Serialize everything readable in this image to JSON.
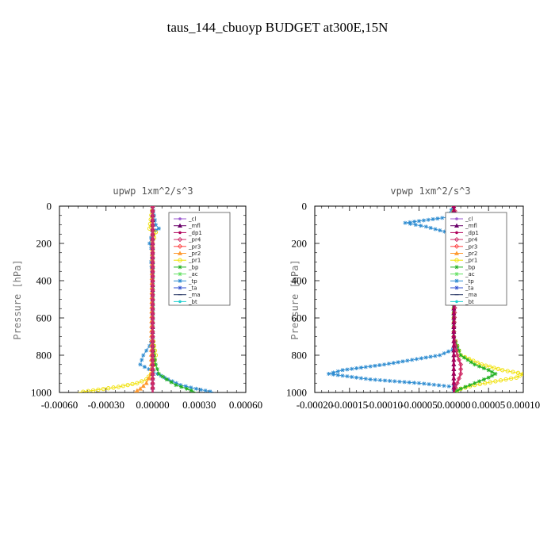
{
  "figure": {
    "title": "taus_144_cbuoyp  BUDGET at300E,15N"
  },
  "legend_labels": [
    "_cl",
    "_mfl",
    "_dp1",
    "_pr4",
    "_pr3",
    "_pr2",
    "_pr1",
    "_bp",
    "_ac",
    "_tp",
    "_ta",
    "_ma",
    "_bt"
  ],
  "colors": {
    "_cl": "#9b59d0",
    "_mfl": "#6a006a",
    "_dp1": "#b0005a",
    "_pr4": "#d0306a",
    "_pr3": "#ff4040",
    "_pr2": "#ff9a30",
    "_pr1": "#f0e000",
    "_bp": "#20b020",
    "_ac": "#60e060",
    "_tp": "#2a8ad0",
    "_ta": "#3050d0",
    "_ma": "#203060",
    "_bt": "#20d0d0"
  },
  "chart_data": [
    {
      "type": "line",
      "title": "upwp   1xm^2/s^3",
      "ylabel": "Pressure [hPa]",
      "xlabel": "",
      "xlim": [
        -0.0006,
        0.0006
      ],
      "ylim": [
        1000,
        0
      ],
      "xticks": [
        -0.0006,
        -0.0003,
        0.0,
        0.0003,
        0.0006
      ],
      "xtick_labels": [
        "-0.00060",
        "-0.00030",
        "0.00000",
        "0.00030",
        "0.00060"
      ],
      "yticks": [
        0,
        200,
        400,
        600,
        800,
        1000
      ],
      "ytick_labels": [
        "0",
        "200",
        "400",
        "600",
        "800",
        "1000"
      ],
      "legend_position": "upper-right",
      "series": [
        {
          "name": "_tp",
          "y": [
            0,
            100,
            120,
            140,
            200,
            250,
            300,
            400,
            600,
            700,
            750,
            800,
            850,
            900,
            930,
            960,
            980,
            1000
          ],
          "x": [
            0.0,
            2e-05,
            4e-05,
            0.0,
            -2e-05,
            0.0,
            -1e-05,
            0.0,
            0.0,
            0.0,
            -2e-05,
            -6e-05,
            -8e-05,
            3e-05,
            0.0001,
            0.00018,
            0.00028,
            0.0004
          ]
        },
        {
          "name": "_pr1",
          "y": [
            0,
            120,
            140,
            200,
            400,
            700,
            800,
            880,
            900,
            930,
            950,
            970,
            985,
            1000
          ],
          "x": [
            0.0,
            -2e-05,
            2e-05,
            0.0,
            0.0,
            0.0,
            2e-05,
            0.0,
            -1e-05,
            -4e-05,
            -0.0001,
            -0.00022,
            -0.00035,
            -0.00048
          ]
        },
        {
          "name": "_bp",
          "y": [
            0,
            700,
            800,
            850,
            900,
            930,
            960,
            980,
            1000
          ],
          "x": [
            0.0,
            0.0,
            1e-05,
            2e-05,
            4e-05,
            9e-05,
            0.00015,
            0.00022,
            0.00028
          ]
        },
        {
          "name": "_pr2",
          "y": [
            0,
            900,
            950,
            980,
            1000
          ],
          "x": [
            0.0,
            -1e-05,
            -4e-05,
            -8e-05,
            -0.00012
          ]
        },
        {
          "name": "_cl",
          "y": [
            0,
            500,
            1000
          ],
          "x": [
            0.0,
            0.0,
            0.0
          ]
        },
        {
          "name": "_mfl",
          "y": [
            0,
            500,
            1000
          ],
          "x": [
            0.0,
            0.0,
            0.0
          ]
        },
        {
          "name": "_dp1",
          "y": [
            0,
            500,
            1000
          ],
          "x": [
            0.0,
            0.0,
            0.0
          ]
        },
        {
          "name": "_pr4",
          "y": [
            0,
            500,
            1000
          ],
          "x": [
            0.0,
            0.0,
            0.0
          ]
        }
      ]
    },
    {
      "type": "line",
      "title": "vpwp   1xm^2/s^3",
      "ylabel": "Pressure [hPa]",
      "xlabel": "",
      "xlim": [
        -0.0002,
        0.0001
      ],
      "ylim": [
        1000,
        0
      ],
      "xticks": [
        -0.0002,
        -0.00015,
        -0.0001,
        -5e-05,
        0.0,
        5e-05,
        0.0001
      ],
      "xtick_labels": [
        "-0.00020",
        "-0.00015",
        "-0.00010",
        "-0.00005",
        "0.00000",
        "0.00005",
        "0.00010"
      ],
      "yticks": [
        0,
        200,
        400,
        600,
        800,
        1000
      ],
      "ytick_labels": [
        "0",
        "200",
        "400",
        "600",
        "800",
        "1000"
      ],
      "legend_position": "upper-right",
      "series": [
        {
          "name": "_tp",
          "y": [
            0,
            60,
            90,
            110,
            130,
            150,
            200,
            400,
            600,
            700,
            760,
            800,
            850,
            880,
            900,
            930,
            950,
            970,
            990,
            1000
          ],
          "x": [
            0.0,
            -1e-05,
            -7e-05,
            -4e-05,
            -2e-05,
            0.0,
            0.0,
            0.0,
            0.0,
            0.0,
            5e-06,
            -2e-05,
            -0.0001,
            -0.00016,
            -0.00018,
            -0.00012,
            -5e-05,
            0.0,
            0.0,
            0.0
          ]
        },
        {
          "name": "_pr1",
          "y": [
            0,
            200,
            400,
            700,
            800,
            850,
            880,
            900,
            920,
            940,
            960,
            980,
            1000
          ],
          "x": [
            0.0,
            0.0,
            0.0,
            0.0,
            1e-05,
            4e-05,
            7e-05,
            0.0001,
            9e-05,
            6e-05,
            3e-05,
            1e-05,
            0.0
          ]
        },
        {
          "name": "_bp",
          "y": [
            0,
            700,
            800,
            850,
            880,
            900,
            920,
            950,
            980,
            1000
          ],
          "x": [
            0.0,
            0.0,
            1e-05,
            3e-05,
            5e-05,
            6e-05,
            5e-05,
            3e-05,
            1e-05,
            0.0
          ]
        },
        {
          "name": "_pr4",
          "y": [
            0,
            80,
            120,
            160,
            700,
            800,
            850,
            900,
            950,
            1000
          ],
          "x": [
            0.0,
            5e-06,
            -5e-06,
            5e-06,
            0.0,
            5e-06,
            1e-05,
            1e-05,
            5e-06,
            0.0
          ]
        },
        {
          "name": "_pr2",
          "y": [
            0,
            200,
            400,
            1000
          ],
          "x": [
            0.0,
            -5e-06,
            0.0,
            0.0
          ]
        },
        {
          "name": "_cl",
          "y": [
            0,
            500,
            1000
          ],
          "x": [
            0.0,
            0.0,
            0.0
          ]
        },
        {
          "name": "_mfl",
          "y": [
            0,
            500,
            1000
          ],
          "x": [
            0.0,
            0.0,
            0.0
          ]
        },
        {
          "name": "_dp1",
          "y": [
            0,
            500,
            1000
          ],
          "x": [
            0.0,
            0.0,
            0.0
          ]
        }
      ]
    }
  ]
}
